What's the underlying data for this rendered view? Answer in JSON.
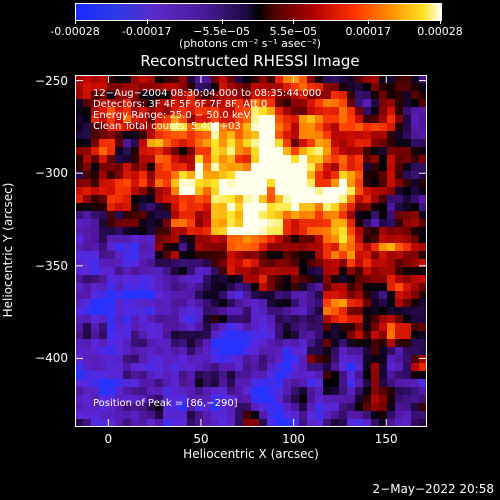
{
  "colorbar": {
    "tick_labels": [
      "-0.00028",
      "-0.00017",
      "−5.5e−05",
      "5.5e−05",
      "0.00017",
      "0.00028"
    ],
    "tick_values": [
      -0.00028,
      -0.00017,
      -5.5e-05,
      5.5e-05,
      0.00017,
      0.00028
    ],
    "range": [
      -0.00028,
      0.00028
    ],
    "units": "(photons cm⁻² s⁻¹ asec⁻²)"
  },
  "chart_data": {
    "type": "heatmap",
    "title": "Reconstructed RHESSI Image",
    "xlabel": "Heliocentric X (arcsec)",
    "ylabel": "Heliocentric Y (arcsec)",
    "xlim": [
      -18,
      172
    ],
    "ylim": [
      -437,
      -247
    ],
    "x_ticks": [
      0,
      50,
      100,
      150
    ],
    "y_ticks": [
      -250,
      -300,
      -350,
      -400
    ],
    "x_tick_labels": [
      "0",
      "50",
      "100",
      "150"
    ],
    "y_tick_labels": [
      "−250",
      "−300",
      "−350",
      "−400"
    ],
    "peak_position": [
      86,
      -290
    ],
    "colormap": "rhessi-blue-white-red-yellow",
    "annotations": [
      "12−Aug−2004 08:30:04.000 to 08:35:44.000",
      "Detectors: 3F 4F 5F 6F 7F 8F, Att 0",
      "Energy Range: 25.0 − 50.0 keV",
      "Clean    Total counts: 5.40E+03"
    ],
    "peak_label": "Position of Peak = [86,−290]"
  },
  "timestamp": "2−May−2022 20:58"
}
